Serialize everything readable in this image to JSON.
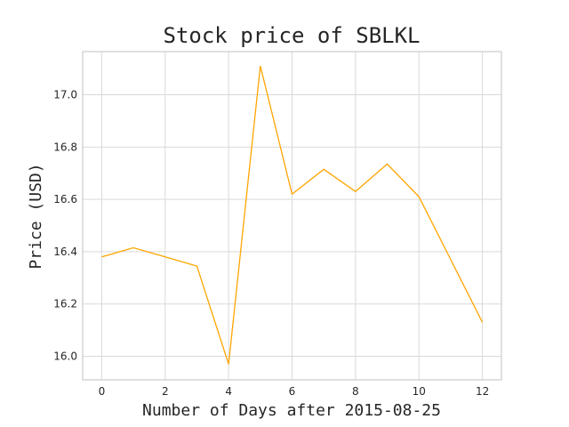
{
  "chart_data": {
    "type": "line",
    "title": "Stock price of SBLKL",
    "xlabel": "Number of Days after 2015-08-25",
    "ylabel": "Price (USD)",
    "xlim": [
      -0.6,
      12.6
    ],
    "ylim": [
      15.91,
      17.165
    ],
    "x_ticks": [
      0,
      2,
      4,
      6,
      8,
      10,
      12
    ],
    "y_ticks": [
      16.0,
      16.2,
      16.4,
      16.6,
      16.8,
      17.0
    ],
    "y_tick_labels": [
      "16.0",
      "16.2",
      "16.4",
      "16.6",
      "16.8",
      "17.0"
    ],
    "grid": true,
    "series": [
      {
        "color": "#ffa500",
        "x": [
          0,
          1,
          2,
          3,
          4,
          5,
          6,
          7,
          8,
          9,
          10,
          11,
          12
        ],
        "y": [
          16.38,
          16.415,
          16.38,
          16.345,
          15.97,
          17.11,
          16.62,
          16.715,
          16.63,
          16.735,
          16.61,
          16.37,
          16.13
        ]
      }
    ]
  }
}
